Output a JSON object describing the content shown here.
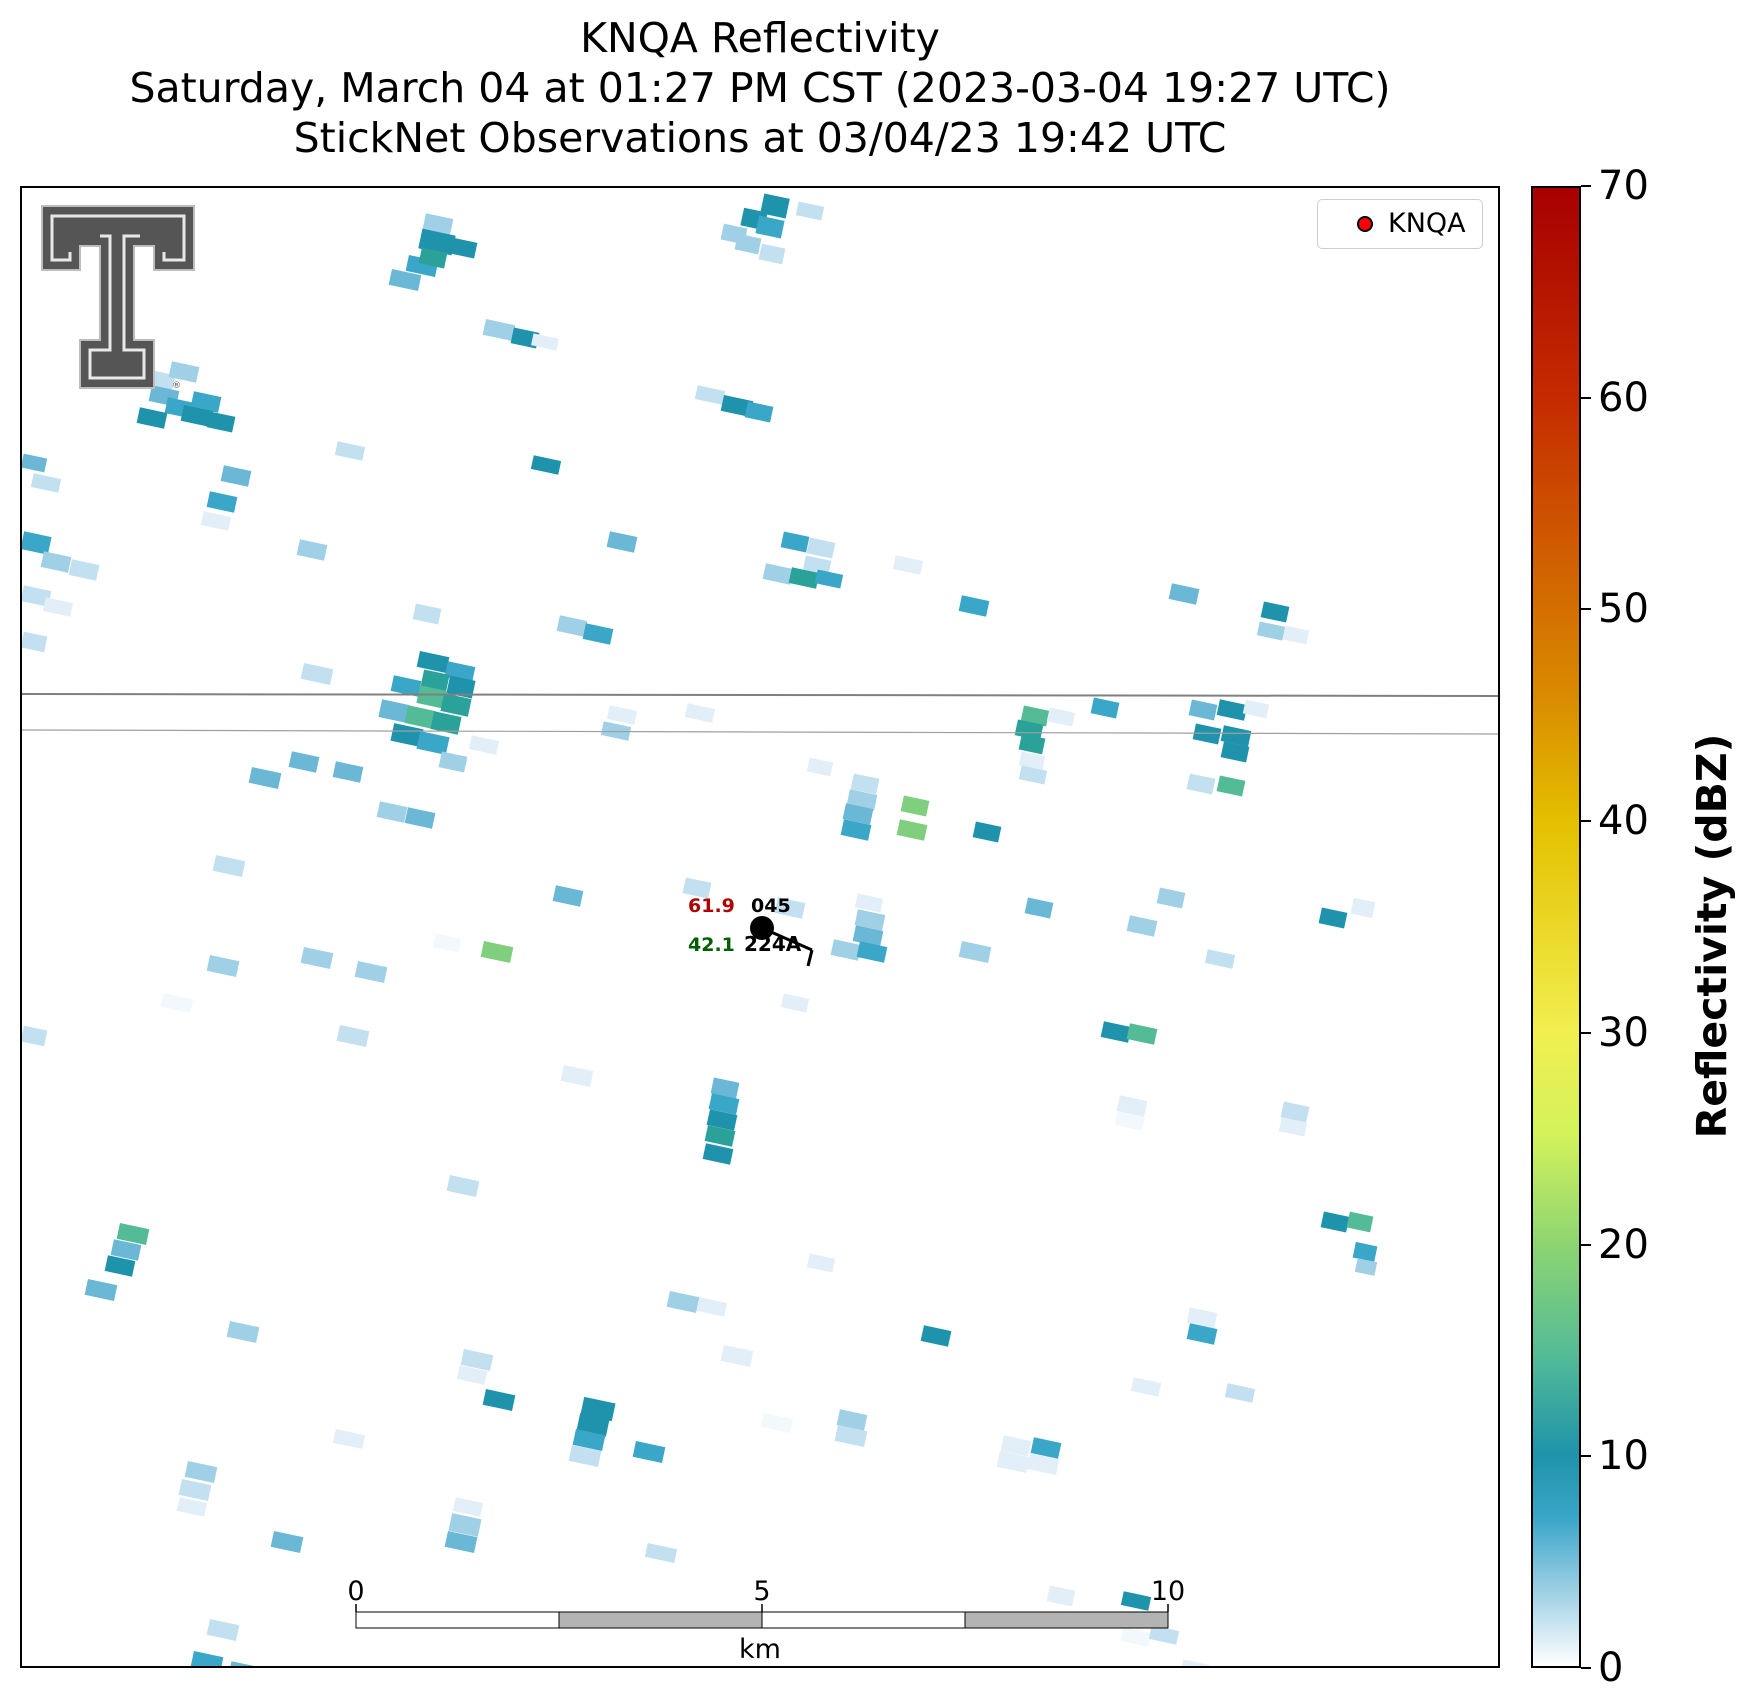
{
  "title": {
    "line1": "KNQA Reflectivity",
    "line2": "Saturday, March 04 at 01:27 PM CST (2023-03-04 19:27 UTC)",
    "line3": "StickNet Observations at 03/04/23 19:42 UTC"
  },
  "legend": {
    "label": "KNQA",
    "marker_color": "#ff0000"
  },
  "station": {
    "temperature": "61.9",
    "dewpoint": "42.1",
    "pressure": "045",
    "id": "224A"
  },
  "scalebar": {
    "ticks": [
      "0",
      "5",
      "10"
    ],
    "unit": "km"
  },
  "colorbar": {
    "label": "Reflectivity (dBZ)",
    "ticks": [
      "0",
      "10",
      "20",
      "30",
      "40",
      "50",
      "60",
      "70"
    ],
    "min": 0,
    "max": 70
  },
  "logo": {
    "name": "texas-tech-double-t-logo"
  }
}
